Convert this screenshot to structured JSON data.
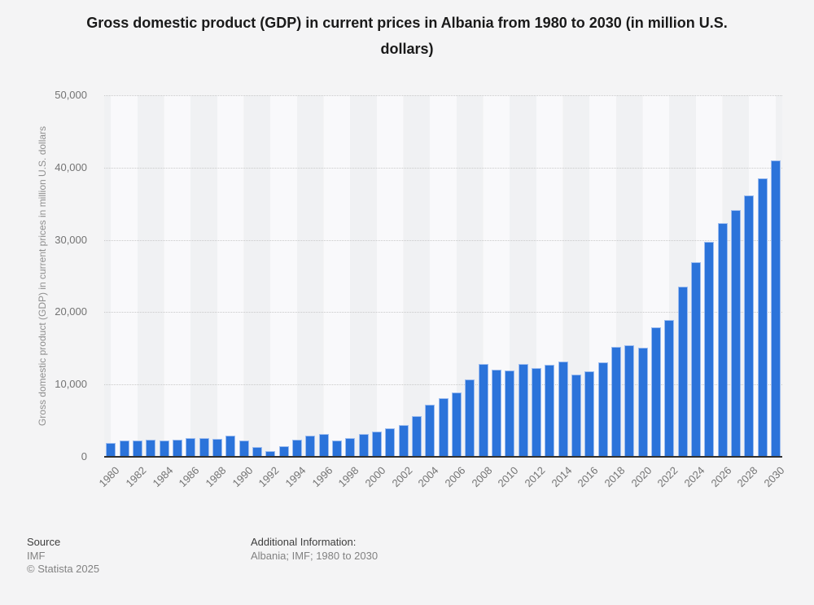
{
  "title": "Gross domestic product (GDP) in current prices in Albania from 1980 to 2030 (in million U.S. dollars)",
  "chart_data": {
    "type": "bar",
    "title": "Gross domestic product (GDP) in current prices in Albania from 1980 to 2030 (in million U.S. dollars)",
    "xlabel": "",
    "ylabel": "Gross domestic product (GDP) in current prices in million U.S. dollars",
    "ylim": [
      0,
      50000
    ],
    "ytick_values": [
      0,
      10000,
      20000,
      30000,
      40000,
      50000
    ],
    "ytick_labels": [
      "0",
      "10,000",
      "20,000",
      "30,000",
      "40,000",
      "50,000"
    ],
    "xtick_labels": [
      "1980",
      "1982",
      "1984",
      "1986",
      "1988",
      "1990",
      "1992",
      "1994",
      "1996",
      "1998",
      "2000",
      "2002",
      "2004",
      "2006",
      "2008",
      "2010",
      "2012",
      "2014",
      "2016",
      "2018",
      "2020",
      "2022",
      "2024",
      "2026",
      "2028",
      "2030"
    ],
    "grid": "horizontal dotted",
    "legend": "none",
    "bar_color": "#2b73da",
    "categories": [
      1980,
      1981,
      1982,
      1983,
      1984,
      1985,
      1986,
      1987,
      1988,
      1989,
      1990,
      1991,
      1992,
      1993,
      1994,
      1995,
      1996,
      1997,
      1998,
      1999,
      2000,
      2001,
      2002,
      2003,
      2004,
      2005,
      2006,
      2007,
      2008,
      2009,
      2010,
      2011,
      2012,
      2013,
      2014,
      2015,
      2016,
      2017,
      2018,
      2019,
      2020,
      2021,
      2022,
      2023,
      2024,
      2025,
      2026,
      2027,
      2028,
      2029,
      2030
    ],
    "values": [
      1946,
      2229,
      2296,
      2319,
      2290,
      2339,
      2587,
      2566,
      2530,
      2884,
      2221,
      1333,
      843,
      1461,
      2361,
      2882,
      3200,
      2259,
      2560,
      3209,
      3483,
      3928,
      4348,
      5611,
      7185,
      8052,
      8905,
      10677,
      12881,
      12044,
      11927,
      12891,
      12320,
      12776,
      13228,
      11387,
      11861,
      13019,
      15156,
      15401,
      15131,
      17930,
      18916,
      23547,
      26900,
      29700,
      32350,
      34100,
      36200,
      38500,
      41000
    ]
  },
  "footer": {
    "source_label": "Source",
    "source_value": "IMF",
    "copyright": "© Statista 2025",
    "additional_label": "Additional Information:",
    "additional_value": "Albania; IMF; 1980 to 2030"
  },
  "colors": {
    "bar": "#2b73da",
    "bar_edge": "#9dbdf0",
    "stripe_dark": "#f0f1f3",
    "stripe_light": "#f9f9fb",
    "gridline": "#c9c9c9",
    "axis_line": "#303030",
    "tick_text": "#737373"
  }
}
